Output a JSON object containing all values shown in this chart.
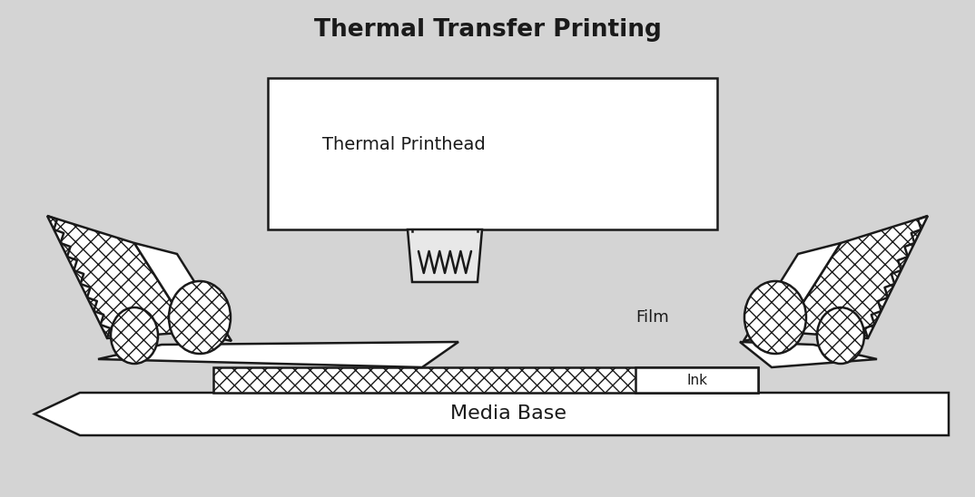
{
  "title": "Thermal Transfer Printing",
  "title_fontsize": 19,
  "title_fontweight": "bold",
  "bg_color": "#d4d4d4",
  "white": "#ffffff",
  "black": "#1a1a1a",
  "label_thermal": "Thermal Printhead",
  "label_film": "Film",
  "label_ink": "Ink",
  "label_media": "Media Base",
  "label_fontsize": 13,
  "lw": 1.8
}
